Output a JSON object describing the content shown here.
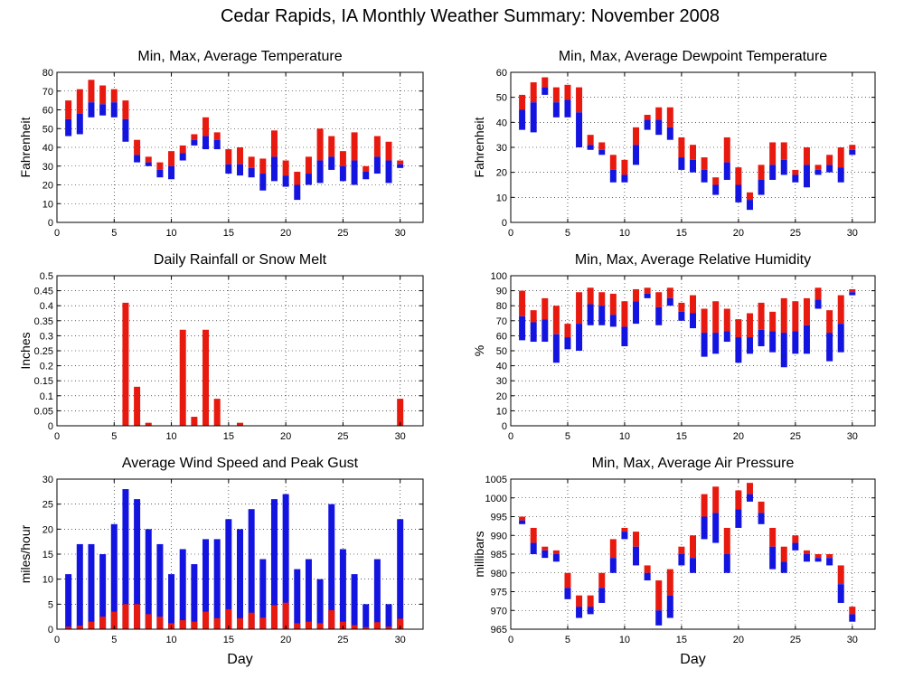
{
  "page": {
    "title": "Cedar Rapids, IA Monthly Weather Summary: November 2008"
  },
  "colors": {
    "red": "#e8190f",
    "blue": "#1414e0"
  },
  "chart_data": [
    {
      "id": "temp",
      "type": "bar",
      "title": "Min, Max, Average Temperature",
      "ylabel": "Fahrenheit",
      "xlabel": "",
      "xlim": [
        0,
        32
      ],
      "ylim": [
        0,
        80
      ],
      "xticks": [
        0,
        5,
        10,
        15,
        20,
        25,
        30
      ],
      "yticks": [
        0,
        10,
        20,
        30,
        40,
        50,
        60,
        70,
        80
      ],
      "ytick_labels": [
        "0",
        "10",
        "20",
        "30",
        "40",
        "50",
        "60",
        "70",
        "80"
      ],
      "grid": true,
      "x": [
        1,
        2,
        3,
        4,
        5,
        6,
        7,
        8,
        9,
        10,
        11,
        12,
        13,
        14,
        15,
        16,
        17,
        18,
        19,
        20,
        21,
        22,
        23,
        24,
        25,
        26,
        27,
        28,
        29,
        30
      ],
      "min": [
        46,
        47,
        56,
        57,
        56,
        43,
        32,
        30,
        24,
        23,
        33,
        41,
        39,
        39,
        26,
        25,
        24,
        17,
        22,
        19,
        12,
        20,
        21,
        28,
        22,
        20,
        23,
        26,
        21,
        29
      ],
      "max": [
        65,
        71,
        76,
        73,
        71,
        65,
        44,
        35,
        32,
        38,
        41,
        47,
        56,
        48,
        39,
        40,
        35,
        34,
        49,
        33,
        27,
        35,
        50,
        46,
        38,
        48,
        30,
        46,
        43,
        33
      ],
      "avg": [
        55,
        58,
        64,
        63,
        64,
        55,
        36,
        32,
        28,
        30,
        37,
        44,
        46,
        44,
        31,
        31,
        29,
        26,
        35,
        25,
        20,
        26,
        33,
        35,
        30,
        33,
        27,
        35,
        33,
        31
      ]
    },
    {
      "id": "dewpoint",
      "type": "bar",
      "title": "Min, Max, Average Dewpoint Temperature",
      "ylabel": "Fahrenheit",
      "xlabel": "",
      "xlim": [
        0,
        32
      ],
      "ylim": [
        0,
        60
      ],
      "xticks": [
        0,
        5,
        10,
        15,
        20,
        25,
        30
      ],
      "yticks": [
        0,
        10,
        20,
        30,
        40,
        50,
        60
      ],
      "ytick_labels": [
        "0",
        "10",
        "20",
        "30",
        "40",
        "50",
        "60"
      ],
      "grid": true,
      "x": [
        1,
        2,
        3,
        4,
        5,
        6,
        7,
        8,
        9,
        10,
        11,
        12,
        13,
        14,
        15,
        16,
        17,
        18,
        19,
        20,
        21,
        22,
        23,
        24,
        25,
        26,
        27,
        28,
        29,
        30
      ],
      "min": [
        37,
        36,
        51,
        42,
        42,
        30,
        29,
        27,
        16,
        16,
        23,
        37,
        35,
        33,
        21,
        20,
        16,
        11,
        17,
        8,
        5,
        11,
        17,
        19,
        16,
        14,
        19,
        20,
        16,
        27
      ],
      "max": [
        51,
        56,
        58,
        54,
        55,
        54,
        35,
        32,
        27,
        25,
        38,
        43,
        46,
        46,
        34,
        31,
        26,
        18,
        34,
        22,
        12,
        23,
        32,
        32,
        21,
        30,
        23,
        27,
        30,
        31
      ],
      "avg": [
        45,
        48,
        54,
        48,
        49,
        44,
        31,
        29,
        21,
        19,
        31,
        41,
        41,
        38,
        26,
        25,
        21,
        15,
        24,
        15,
        9,
        17,
        23,
        25,
        19,
        23,
        21,
        23,
        22,
        29
      ]
    },
    {
      "id": "rain",
      "type": "bar",
      "title": "Daily Rainfall or Snow Melt",
      "ylabel": "Inches",
      "xlabel": "",
      "xlim": [
        0,
        32
      ],
      "ylim": [
        0,
        0.5
      ],
      "xticks": [
        0,
        5,
        10,
        15,
        20,
        25,
        30
      ],
      "yticks": [
        0,
        0.05,
        0.1,
        0.15,
        0.2,
        0.25,
        0.3,
        0.35,
        0.4,
        0.45,
        0.5
      ],
      "ytick_labels": [
        "0",
        "0.05",
        "0.1",
        "0.15",
        "0.2",
        "0.25",
        "0.3",
        "0.35",
        "0.4",
        "0.45",
        "0.5"
      ],
      "grid": true,
      "x": [
        1,
        2,
        3,
        4,
        5,
        6,
        7,
        8,
        9,
        10,
        11,
        12,
        13,
        14,
        15,
        16,
        17,
        18,
        19,
        20,
        21,
        22,
        23,
        24,
        25,
        26,
        27,
        28,
        29,
        30
      ],
      "values": [
        0,
        0,
        0,
        0,
        0,
        0.41,
        0.13,
        0.01,
        0,
        0,
        0.32,
        0.03,
        0.32,
        0.09,
        0,
        0.01,
        0,
        0,
        0,
        0,
        0,
        0,
        0,
        0,
        0,
        0,
        0,
        0,
        0,
        0.09
      ]
    },
    {
      "id": "humidity",
      "type": "bar",
      "title": "Min, Max, Average Relative Humidity",
      "ylabel": "%",
      "xlabel": "",
      "xlim": [
        0,
        32
      ],
      "ylim": [
        0,
        100
      ],
      "xticks": [
        0,
        5,
        10,
        15,
        20,
        25,
        30
      ],
      "yticks": [
        0,
        10,
        20,
        30,
        40,
        50,
        60,
        70,
        80,
        90,
        100
      ],
      "ytick_labels": [
        "0",
        "10",
        "20",
        "30",
        "40",
        "50",
        "60",
        "70",
        "80",
        "90",
        "100"
      ],
      "grid": true,
      "x": [
        1,
        2,
        3,
        4,
        5,
        6,
        7,
        8,
        9,
        10,
        11,
        12,
        13,
        14,
        15,
        16,
        17,
        18,
        19,
        20,
        21,
        22,
        23,
        24,
        25,
        26,
        27,
        28,
        29,
        30
      ],
      "min": [
        57,
        56,
        56,
        42,
        51,
        50,
        67,
        67,
        66,
        53,
        68,
        85,
        67,
        80,
        70,
        65,
        46,
        48,
        56,
        42,
        48,
        53,
        49,
        39,
        48,
        48,
        78,
        43,
        49,
        87
      ],
      "max": [
        90,
        77,
        85,
        80,
        68,
        89,
        92,
        89,
        88,
        83,
        91,
        92,
        89,
        92,
        82,
        87,
        78,
        83,
        78,
        71,
        75,
        82,
        76,
        85,
        83,
        85,
        92,
        77,
        87,
        91
      ],
      "avg": [
        73,
        69,
        71,
        61,
        59,
        68,
        81,
        80,
        74,
        66,
        83,
        88,
        79,
        85,
        76,
        75,
        62,
        62,
        63,
        59,
        59,
        64,
        63,
        62,
        63,
        67,
        84,
        62,
        68,
        89
      ]
    },
    {
      "id": "wind",
      "type": "bar",
      "title": "Average Wind Speed and Peak Gust",
      "ylabel": "miles/hour",
      "xlabel": "Day",
      "xlim": [
        0,
        32
      ],
      "ylim": [
        0,
        30
      ],
      "xticks": [
        0,
        5,
        10,
        15,
        20,
        25,
        30
      ],
      "yticks": [
        0,
        5,
        10,
        15,
        20,
        25,
        30
      ],
      "ytick_labels": [
        "0",
        "5",
        "10",
        "15",
        "20",
        "25",
        "30"
      ],
      "grid": true,
      "x": [
        1,
        2,
        3,
        4,
        5,
        6,
        7,
        8,
        9,
        10,
        11,
        12,
        13,
        14,
        15,
        16,
        17,
        18,
        19,
        20,
        21,
        22,
        23,
        24,
        25,
        26,
        27,
        28,
        29,
        30
      ],
      "peak_gust": [
        11,
        17,
        17,
        15,
        21,
        28,
        26,
        20,
        17,
        11,
        16,
        13,
        18,
        18,
        22,
        20,
        24,
        14,
        26,
        27,
        12,
        14,
        10,
        25,
        16,
        11,
        5,
        14,
        5,
        22
      ],
      "avg_speed": [
        0.5,
        0.7,
        1.5,
        2.5,
        3.5,
        5,
        5,
        3,
        2.5,
        1.2,
        1.8,
        1.5,
        3.5,
        2.2,
        4,
        2.2,
        3.3,
        2.3,
        4.8,
        5.3,
        1.2,
        1.5,
        1.2,
        3.8,
        1.5,
        0.8,
        0.4,
        1.4,
        0.5,
        2.1
      ]
    },
    {
      "id": "pressure",
      "type": "bar",
      "title": "Min, Max, Average Air Pressure",
      "ylabel": "millibars",
      "xlabel": "Day",
      "xlim": [
        0,
        32
      ],
      "ylim": [
        965,
        1005
      ],
      "xticks": [
        0,
        5,
        10,
        15,
        20,
        25,
        30
      ],
      "yticks": [
        965,
        970,
        975,
        980,
        985,
        990,
        995,
        1000,
        1005
      ],
      "ytick_labels": [
        "965",
        "970",
        "975",
        "980",
        "985",
        "990",
        "995",
        "1000",
        "1005"
      ],
      "grid": true,
      "x": [
        1,
        2,
        3,
        4,
        5,
        6,
        7,
        8,
        9,
        10,
        11,
        12,
        13,
        14,
        15,
        16,
        17,
        18,
        19,
        20,
        21,
        22,
        23,
        24,
        25,
        26,
        27,
        28,
        29,
        30
      ],
      "min": [
        993,
        985,
        984,
        983,
        973,
        968,
        969,
        972,
        980,
        989,
        982,
        978,
        966,
        968,
        982,
        980,
        989,
        988,
        980,
        992,
        999,
        993,
        981,
        980,
        986,
        983,
        983,
        982,
        972,
        967
      ],
      "max": [
        995,
        992,
        987,
        986,
        980,
        974,
        974,
        980,
        989,
        992,
        991,
        982,
        978,
        981,
        987,
        990,
        1001,
        1003,
        992,
        1002,
        1004,
        999,
        992,
        987,
        990,
        986,
        985,
        985,
        982,
        971
      ],
      "avg": [
        994,
        988,
        986,
        985,
        976,
        971,
        971,
        976,
        984,
        991,
        987,
        980,
        970,
        974,
        985,
        984,
        995,
        996,
        985,
        997,
        1001,
        996,
        987,
        983,
        988,
        985,
        984,
        984,
        977,
        969
      ]
    }
  ]
}
